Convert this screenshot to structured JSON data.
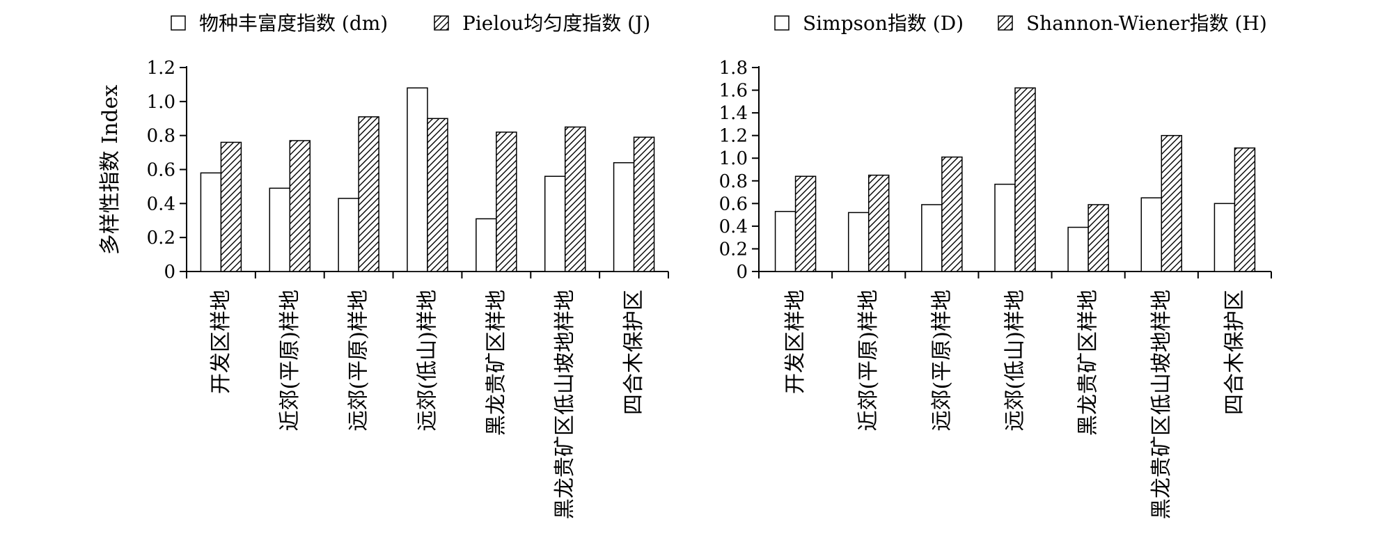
{
  "chart_data": [
    {
      "type": "bar",
      "categories": [
        "开发区样地",
        "近郊(平原)样地",
        "远郊(平原)样地",
        "远郊(低山)样地",
        "黑龙贵矿区样地",
        "黑龙贵矿区低山坡地样地",
        "四合木保护区"
      ],
      "series": [
        {
          "name": "物种丰富度指数 (dm)",
          "values": [
            0.58,
            0.49,
            0.43,
            1.08,
            0.31,
            0.56,
            0.64
          ]
        },
        {
          "name": "Pielou均匀度指数 (J)",
          "values": [
            0.76,
            0.77,
            0.91,
            0.9,
            0.82,
            0.85,
            0.79
          ]
        }
      ],
      "xlabel": "",
      "ylabel": "多样性指数 Index",
      "ylim": [
        0,
        1.2
      ],
      "yticks": [
        "0",
        "0.2",
        "0.4",
        "0.6",
        "0.8",
        "1.0",
        "1.2"
      ],
      "grid": false,
      "legend": "top"
    },
    {
      "type": "bar",
      "categories": [
        "开发区样地",
        "近郊(平原)样地",
        "远郊(平原)样地",
        "远郊(低山)样地",
        "黑龙贵矿区样地",
        "黑龙贵矿区低山坡地样地",
        "四合木保护区"
      ],
      "series": [
        {
          "name": "Simpson指数 (D)",
          "values": [
            0.53,
            0.52,
            0.59,
            0.77,
            0.39,
            0.65,
            0.6
          ]
        },
        {
          "name": "Shannon-Wiener指数 (H)",
          "values": [
            0.84,
            0.85,
            1.01,
            1.62,
            0.59,
            1.2,
            1.09
          ]
        }
      ],
      "xlabel": "",
      "ylabel": "",
      "ylim": [
        0,
        1.8
      ],
      "yticks": [
        "0",
        "0.2",
        "0.4",
        "0.6",
        "0.8",
        "1.0",
        "1.2",
        "1.4",
        "1.6",
        "1.8"
      ],
      "grid": false,
      "legend": "top"
    }
  ]
}
